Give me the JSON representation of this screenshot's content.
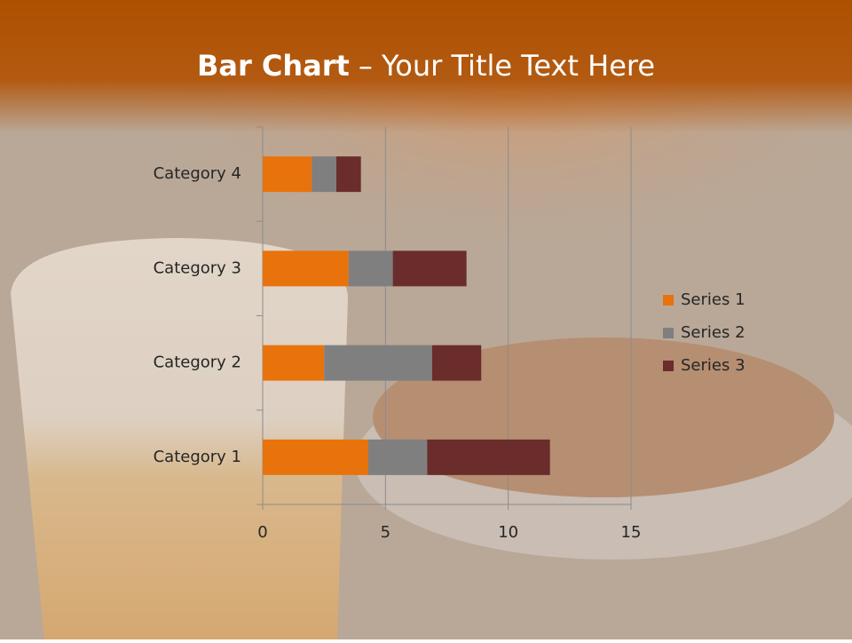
{
  "chart_data": {
    "type": "stacked_barh",
    "title_parts": [
      "Bar Chart",
      "– Your Title Text Here"
    ],
    "categories": [
      "Category 1",
      "Category 2",
      "Category 3",
      "Category 4"
    ],
    "series": [
      {
        "name": "Series 1",
        "color": "#e8730c",
        "values": [
          4.3,
          2.5,
          3.5,
          2.0
        ]
      },
      {
        "name": "Series 2",
        "color": "#7f7f7f",
        "values": [
          2.4,
          4.4,
          1.8,
          1.0
        ]
      },
      {
        "name": "Series 3",
        "color": "#6a2d2b",
        "values": [
          5.0,
          2.0,
          3.0,
          1.0
        ]
      }
    ],
    "xlim": [
      0,
      15
    ],
    "xticks": [
      0,
      5,
      10,
      15
    ],
    "grid": true,
    "legend": "right"
  }
}
